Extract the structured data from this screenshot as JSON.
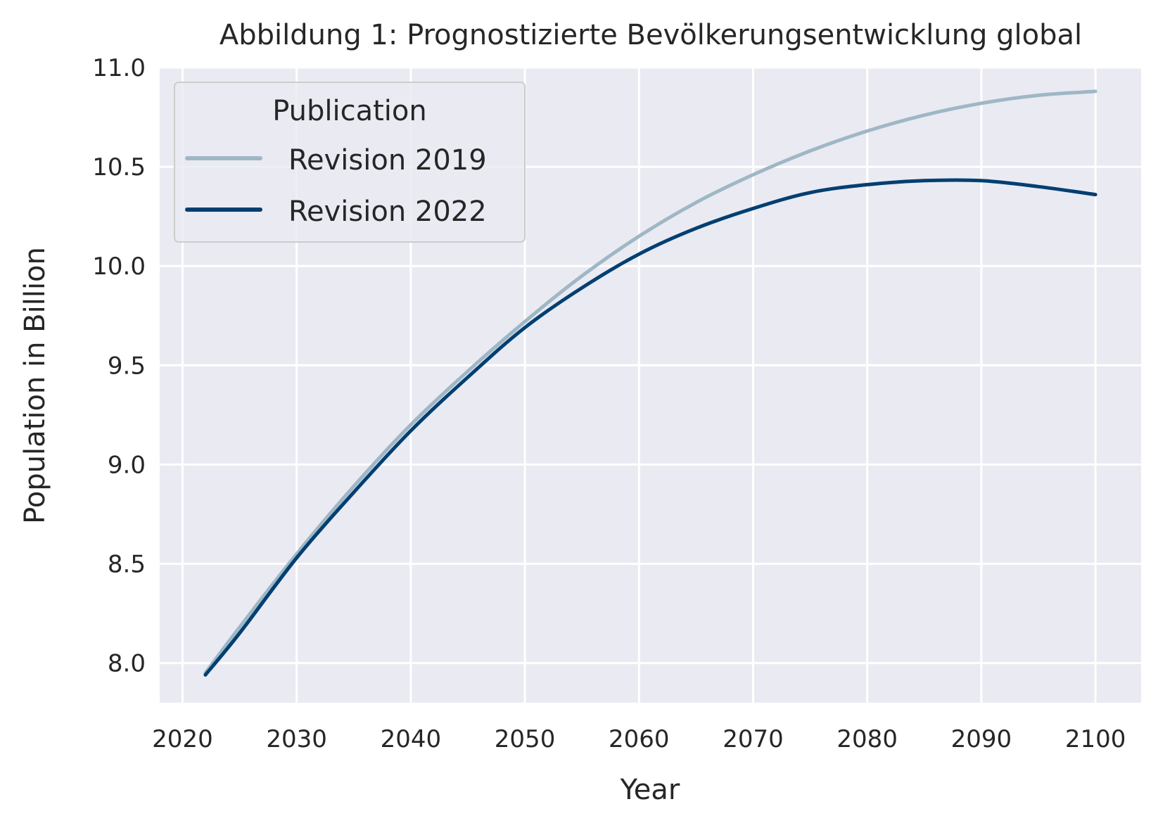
{
  "chart_data": {
    "type": "line",
    "title": "Abbildung 1: Prognostizierte Bevölkerungsentwicklung global",
    "xlabel": "Year",
    "ylabel": "Population in Billion",
    "xlim": [
      2018,
      2104
    ],
    "ylim": [
      7.8,
      11.0
    ],
    "xticks": [
      2020,
      2030,
      2040,
      2050,
      2060,
      2070,
      2080,
      2090,
      2100
    ],
    "xtick_labels": [
      "2020",
      "2030",
      "2040",
      "2050",
      "2060",
      "2070",
      "2080",
      "2090",
      "2100"
    ],
    "yticks": [
      8.0,
      8.5,
      9.0,
      9.5,
      10.0,
      10.5,
      11.0
    ],
    "ytick_labels": [
      "8.0",
      "8.5",
      "9.0",
      "9.5",
      "10.0",
      "10.5",
      "11.0"
    ],
    "grid": true,
    "background_color": "#eaeaf2",
    "legend": {
      "title": "Publication",
      "position": "upper-left"
    },
    "x": [
      2022,
      2025,
      2030,
      2035,
      2040,
      2045,
      2050,
      2055,
      2060,
      2065,
      2070,
      2075,
      2080,
      2085,
      2090,
      2095,
      2100
    ],
    "series": [
      {
        "name": "Revision 2019",
        "color": "#9fb7c5",
        "values": [
          7.95,
          8.18,
          8.55,
          8.89,
          9.2,
          9.47,
          9.72,
          9.95,
          10.15,
          10.32,
          10.46,
          10.58,
          10.68,
          10.76,
          10.82,
          10.86,
          10.88
        ]
      },
      {
        "name": "Revision 2022",
        "color": "#003f72",
        "values": [
          7.94,
          8.15,
          8.53,
          8.86,
          9.17,
          9.44,
          9.69,
          9.89,
          10.06,
          10.19,
          10.29,
          10.37,
          10.41,
          10.43,
          10.43,
          10.4,
          10.36
        ]
      }
    ]
  }
}
